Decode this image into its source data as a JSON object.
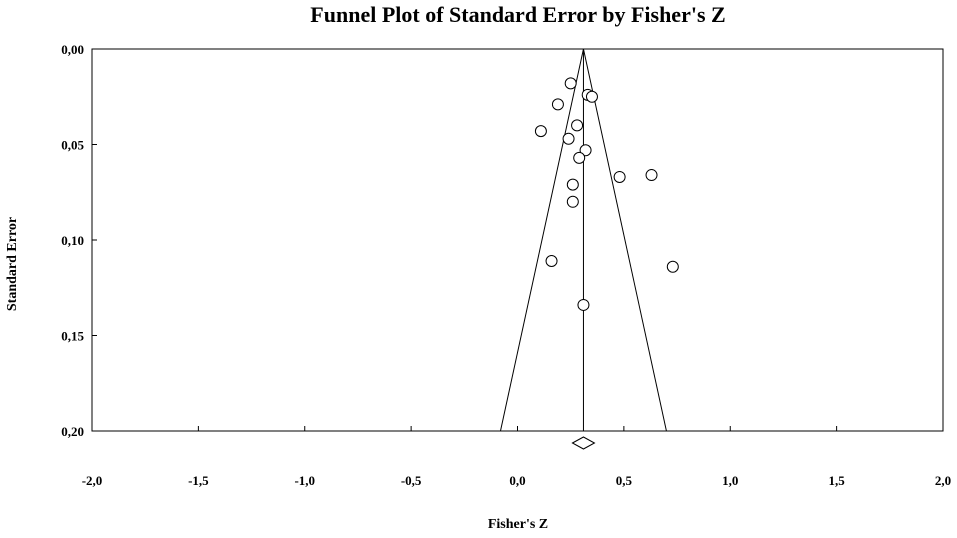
{
  "chart_data": {
    "type": "scatter",
    "title": "Funnel Plot of Standard Error by Fisher's Z",
    "xlabel": "Fisher's Z",
    "ylabel": "Standard Error",
    "xlim": [
      -2.0,
      2.0
    ],
    "ylim": [
      0.0,
      0.2
    ],
    "y_inverted": true,
    "x_ticks": [
      "-2,0",
      "-1,5",
      "-1,0",
      "-0,5",
      "0,0",
      "0,5",
      "1,0",
      "1,5",
      "2,0"
    ],
    "y_ticks": [
      "0,00",
      "0,05",
      "0,10",
      "0,15",
      "0,20"
    ],
    "x_tick_values": [
      -2.0,
      -1.5,
      -1.0,
      -0.5,
      0.0,
      0.5,
      1.0,
      1.5,
      2.0
    ],
    "y_tick_values": [
      0.0,
      0.05,
      0.1,
      0.15,
      0.2
    ],
    "summary_effect": 0.31,
    "funnel_bottom": [
      -0.08,
      0.7
    ],
    "grid": false,
    "legend": "none",
    "points": [
      {
        "x": 0.25,
        "y": 0.018
      },
      {
        "x": 0.33,
        "y": 0.024
      },
      {
        "x": 0.35,
        "y": 0.025
      },
      {
        "x": 0.19,
        "y": 0.029
      },
      {
        "x": 0.28,
        "y": 0.04
      },
      {
        "x": 0.11,
        "y": 0.043
      },
      {
        "x": 0.24,
        "y": 0.047
      },
      {
        "x": 0.32,
        "y": 0.053
      },
      {
        "x": 0.29,
        "y": 0.057
      },
      {
        "x": 0.48,
        "y": 0.067
      },
      {
        "x": 0.63,
        "y": 0.066
      },
      {
        "x": 0.26,
        "y": 0.071
      },
      {
        "x": 0.26,
        "y": 0.08
      },
      {
        "x": 0.16,
        "y": 0.111
      },
      {
        "x": 0.73,
        "y": 0.114
      },
      {
        "x": 0.31,
        "y": 0.134
      }
    ]
  }
}
